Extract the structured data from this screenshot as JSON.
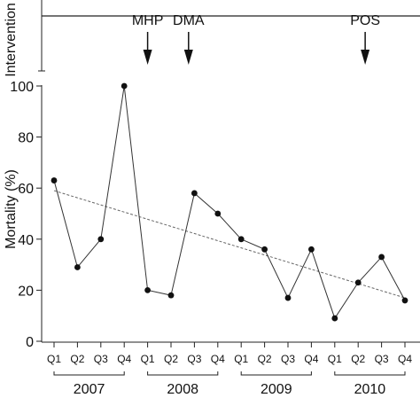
{
  "chart_data": {
    "type": "line",
    "ylabel": "Mortality (%)",
    "intervention_axis_label": "Intervention",
    "ylim": [
      0,
      100
    ],
    "yticks": [
      0,
      20,
      40,
      60,
      80,
      100
    ],
    "categories": [
      "Q1",
      "Q2",
      "Q3",
      "Q4",
      "Q1",
      "Q2",
      "Q3",
      "Q4",
      "Q1",
      "Q2",
      "Q3",
      "Q4",
      "Q1",
      "Q2",
      "Q3",
      "Q4"
    ],
    "years": [
      {
        "label": "2007",
        "start": 0,
        "end": 3
      },
      {
        "label": "2008",
        "start": 4,
        "end": 7
      },
      {
        "label": "2009",
        "start": 8,
        "end": 11
      },
      {
        "label": "2010",
        "start": 12,
        "end": 15
      }
    ],
    "series": [
      {
        "values": [
          63,
          29,
          40,
          100,
          20,
          18,
          58,
          50,
          40,
          36,
          17,
          36,
          9,
          23,
          33,
          16
        ]
      }
    ],
    "trendline": {
      "start": 59,
      "end": 17
    },
    "interventions": [
      {
        "label": "MHP",
        "x": 4
      },
      {
        "label": "DMA",
        "x": 5.75
      },
      {
        "label": "POS",
        "x": 13.3
      }
    ],
    "grid": false,
    "legend": "none"
  }
}
